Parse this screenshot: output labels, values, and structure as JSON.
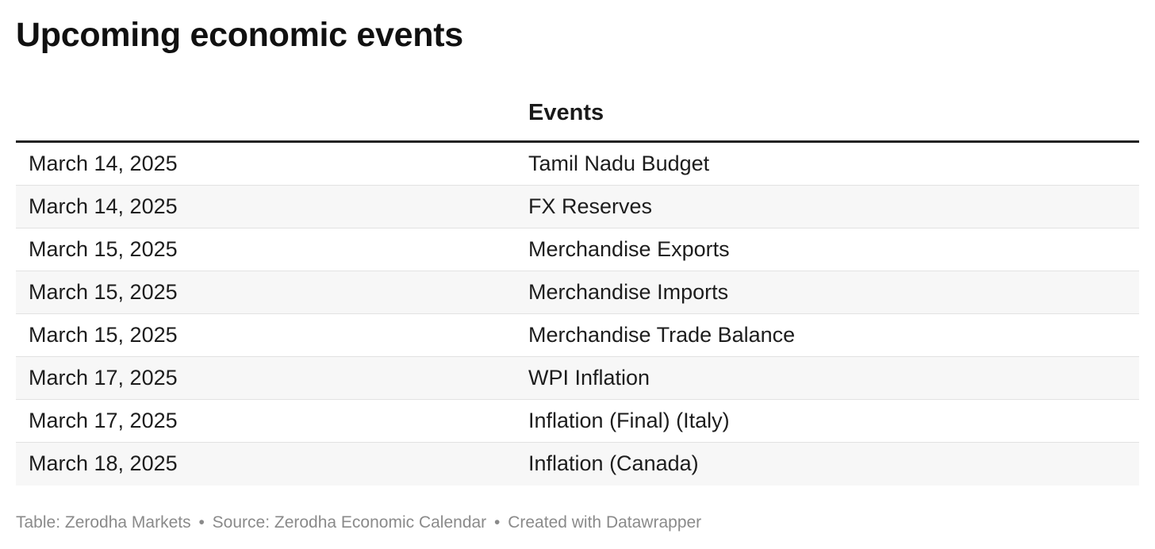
{
  "title": "Upcoming economic events",
  "chart_data": {
    "type": "table",
    "title": "Upcoming economic events",
    "columns": [
      "",
      "Events"
    ],
    "rows": [
      [
        "March 14, 2025",
        "Tamil Nadu Budget"
      ],
      [
        "March 14, 2025",
        "FX Reserves"
      ],
      [
        "March 15, 2025",
        "Merchandise Exports"
      ],
      [
        "March 15, 2025",
        "Merchandise Imports"
      ],
      [
        "March 15, 2025",
        "Merchandise Trade Balance"
      ],
      [
        "March 17, 2025",
        "WPI Inflation"
      ],
      [
        "March 17, 2025",
        "Inflation (Final) (Italy)"
      ],
      [
        "March 18, 2025",
        "Inflation (Canada)"
      ]
    ]
  },
  "footer": {
    "table_credit": "Table: Zerodha Markets",
    "source": "Source: Zerodha Economic Calendar",
    "created_with": "Created with Datawrapper",
    "separator": "•"
  },
  "colors": {
    "title": "#111111",
    "header_rule": "#222222",
    "row_alt_background": "#f7f7f7",
    "row_divider": "#e2e2e2",
    "footer_text": "#8a8a8a"
  }
}
